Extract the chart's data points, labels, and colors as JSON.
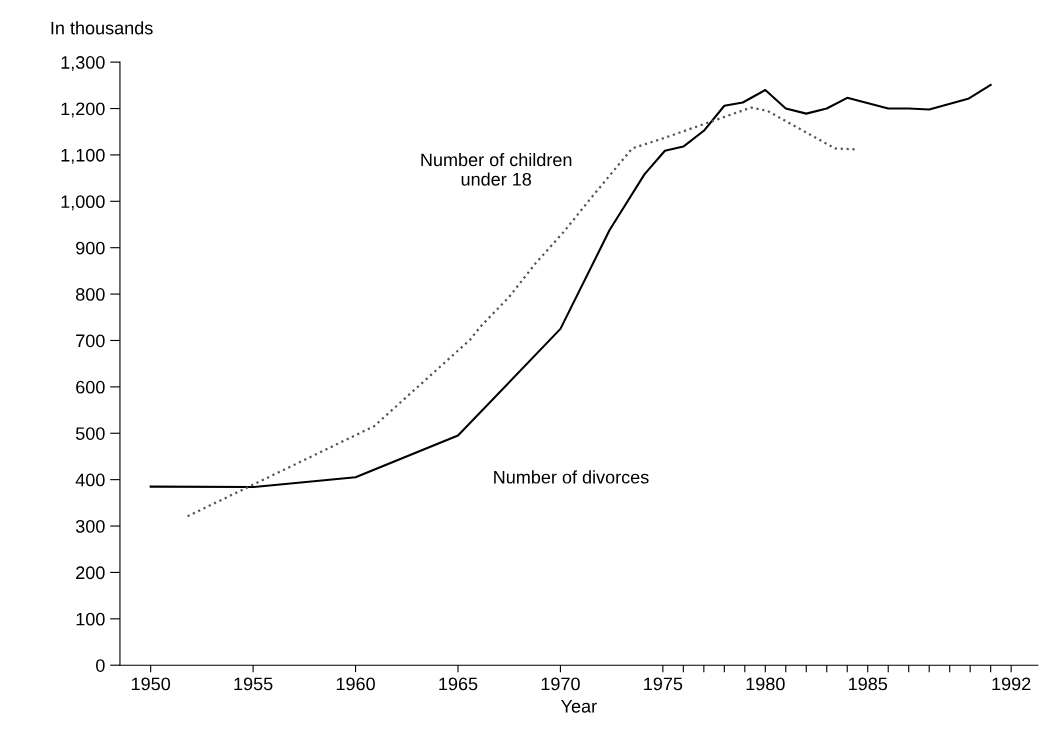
{
  "chart_data": {
    "type": "line",
    "xlabel": "Year",
    "ylabel": "In thousands",
    "xlim": [
      1948.5,
      1993.3
    ],
    "ylim": [
      0,
      1300
    ],
    "xticks": [
      1950,
      1955,
      1960,
      1965,
      1970,
      1975,
      {
        "value": 1976,
        "label": null
      },
      {
        "value": 1977,
        "label": null
      },
      {
        "value": 1978,
        "label": null
      },
      {
        "value": 1979,
        "label": null
      },
      1980,
      {
        "value": 1981,
        "label": null
      },
      {
        "value": 1982,
        "label": null
      },
      {
        "value": 1983,
        "label": null
      },
      {
        "value": 1984,
        "label": null
      },
      1985,
      {
        "value": 1986,
        "label": null
      },
      {
        "value": 1987,
        "label": null
      },
      {
        "value": 1988,
        "label": null
      },
      {
        "value": 1989,
        "label": null
      },
      {
        "value": 1990,
        "label": null
      },
      {
        "value": 1991,
        "label": null
      },
      1992
    ],
    "yticks": [
      0,
      100,
      200,
      300,
      400,
      500,
      600,
      700,
      800,
      900,
      {
        "value": 1000,
        "label": "1,000"
      },
      {
        "value": 1100,
        "label": "1,100"
      },
      {
        "value": 1200,
        "label": "1,200"
      },
      {
        "value": 1300,
        "label": "1,300"
      }
    ],
    "grid": false,
    "legend": false,
    "marker": "none",
    "series": [
      {
        "name": "Number of divorces",
        "color": "#000000",
        "line_style": "solid",
        "x": [
          1950,
          1955,
          1960,
          1965,
          1970,
          1972.4,
          1974.1,
          1975.1,
          1976,
          1977,
          1978,
          1978.9,
          1980,
          1981,
          1982,
          1983,
          1984,
          1986,
          1987,
          1988,
          1989.9,
          1991
        ],
        "values": [
          385,
          384,
          405,
          495,
          725,
          938,
          1058,
          1109,
          1118,
          1152,
          1206,
          1213,
          1240,
          1200,
          1189,
          1200,
          1223,
          1200,
          1200,
          1198,
          1221,
          1251
        ]
      },
      {
        "name": "Number of children\nunder 18",
        "color": "#555555",
        "line_style": "dotted",
        "x": [
          1951.8,
          1960.9,
          1965.6,
          1966.1,
          1967.5,
          1968.8,
          1970.2,
          1971.4,
          1973.5,
          1975.1,
          1979.3,
          1980.1,
          1983.4,
          1984.4
        ],
        "values": [
          321,
          515,
          702,
          730,
          794,
          867,
          936,
          1002,
          1114,
          1137,
          1202,
          1195,
          1114,
          1112
        ]
      }
    ]
  }
}
